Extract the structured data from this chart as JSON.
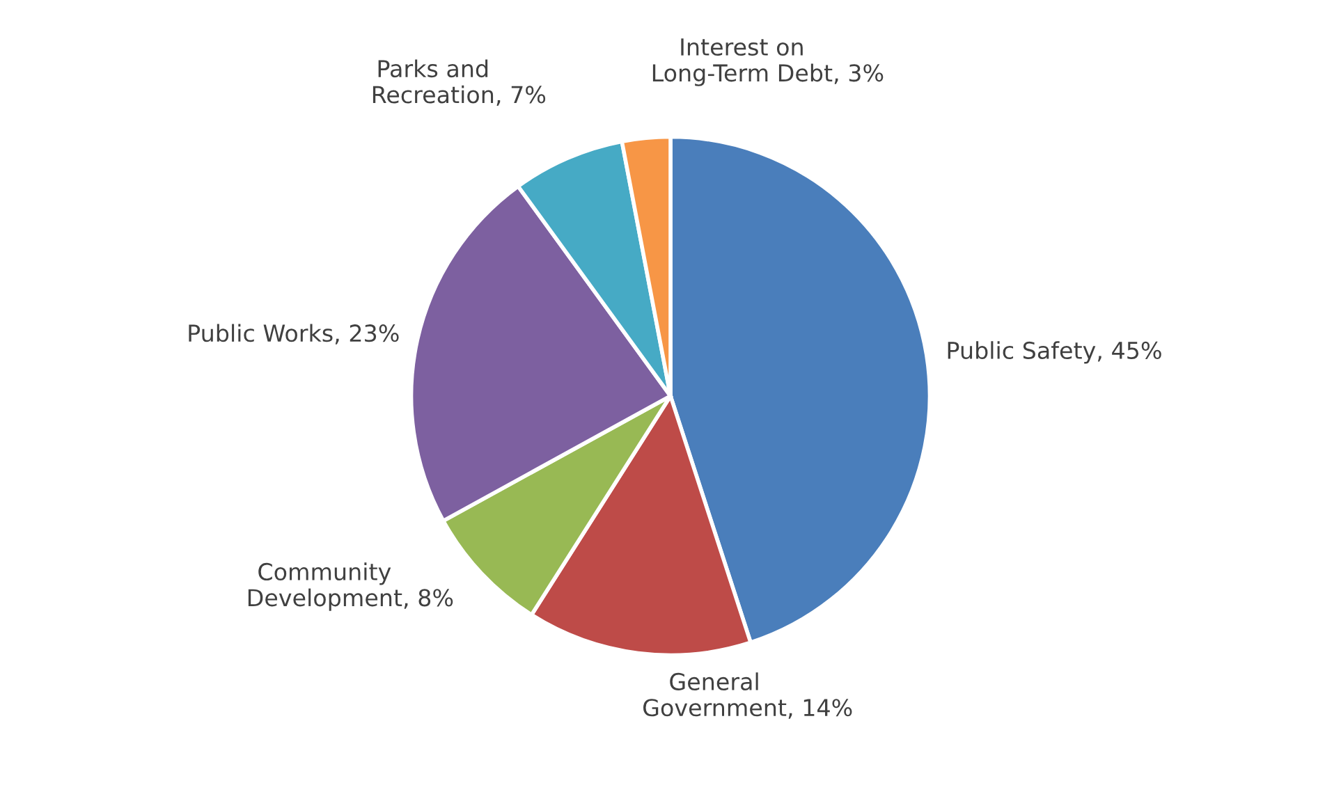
{
  "chart_data": {
    "type": "pie",
    "categories": [
      "Public Safety",
      "General\nGovernment",
      "Community\nDevelopment",
      "Public Works",
      "Parks and\nRecreation",
      "Interest on\nLong-Term Debt"
    ],
    "values": [
      45,
      14,
      8,
      23,
      7,
      3
    ],
    "value_labels": [
      ", 45%",
      ", 14%",
      ", 8%",
      ", 23%",
      ", 7%",
      ", 3%"
    ],
    "data_labels": true,
    "colors": [
      "#4a7ebb",
      "#be4b48",
      "#98b954",
      "#7d60a0",
      "#46aac5",
      "#f79646"
    ],
    "legend": false
  }
}
